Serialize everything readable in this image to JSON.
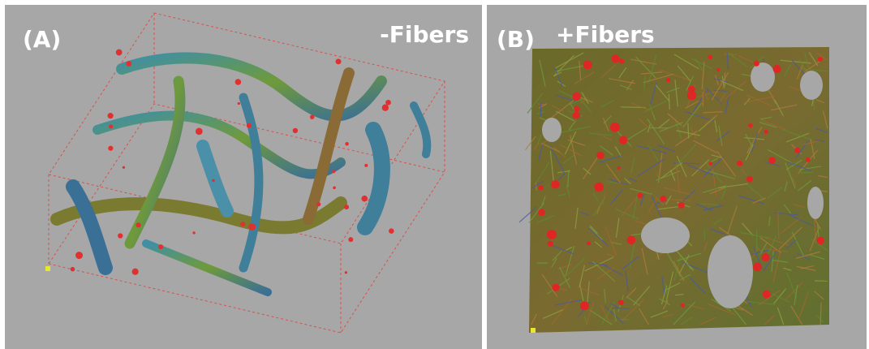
{
  "panels": [
    {
      "label": "(A)",
      "title": "-Fibers"
    },
    {
      "label": "(B)",
      "title": "+Fibers"
    }
  ]
}
